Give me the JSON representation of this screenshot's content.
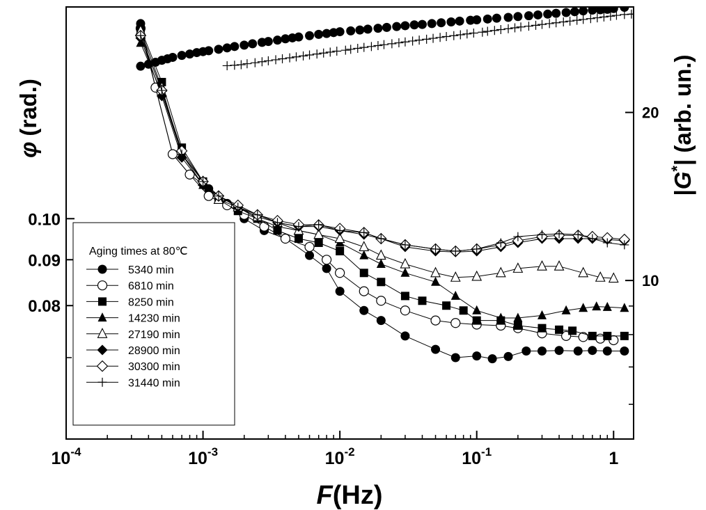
{
  "chart_data": {
    "type": "scatter",
    "x_scale": "log",
    "xlim": [
      0.0001,
      1.4
    ],
    "xlabel": {
      "italic": "F",
      "rest": "(Hz)"
    },
    "x_tick_labels": [
      {
        "value": 0.0001,
        "base": "10",
        "exp": "-4"
      },
      {
        "value": 0.001,
        "base": "10",
        "exp": "-3"
      },
      {
        "value": 0.01,
        "base": "10",
        "exp": "-2"
      },
      {
        "value": 0.1,
        "base": "10",
        "exp": "-1"
      },
      {
        "value": 1,
        "base": "1",
        "exp": ""
      }
    ],
    "ylabel_left": {
      "symbol": "φ",
      "rest": "(rad.)"
    },
    "ylim_left_log": [
      0.0568,
      0.1722
    ],
    "y_left_tick_labels": [
      {
        "value": 0.1,
        "label": "0.10"
      },
      {
        "value": 0.09,
        "label": "0.09"
      },
      {
        "value": 0.08,
        "label": "0.08"
      }
    ],
    "y_left_minor_ticks": [
      0.07
    ],
    "ylabel_right": {
      "pre": "|",
      "italic": "G",
      "sup": "*",
      "post": "|  (arb. un.)"
    },
    "ylim_right_log": [
      5.2,
      30.9
    ],
    "y_right_tick_labels": [
      {
        "value": 20,
        "label": "20"
      },
      {
        "value": 10,
        "label": "10"
      }
    ],
    "y_right_minor_ticks": [
      30,
      9,
      8,
      7,
      6
    ],
    "legend": {
      "title": "Aging times at 80℃",
      "placement": "lower-left"
    },
    "colors": {
      "axis": "#000000",
      "markers": "#000000",
      "background": "#ffffff"
    },
    "phase_series": [
      {
        "name": "5340 min",
        "marker": "circle-filled",
        "x": [
          0.00035,
          0.00045,
          0.0006,
          0.0008,
          0.0011,
          0.0015,
          0.002,
          0.0028,
          0.004,
          0.006,
          0.008,
          0.01,
          0.015,
          0.02,
          0.03,
          0.05,
          0.07,
          0.1,
          0.13,
          0.17,
          0.23,
          0.3,
          0.4,
          0.55,
          0.7,
          0.9,
          1.2
        ],
        "y": [
          0.165,
          0.14,
          0.118,
          0.112,
          0.108,
          0.104,
          0.1,
          0.097,
          0.095,
          0.091,
          0.088,
          0.083,
          0.079,
          0.077,
          0.074,
          0.0715,
          0.07,
          0.0703,
          0.0698,
          0.0702,
          0.0712,
          0.0712,
          0.0713,
          0.0712,
          0.0713,
          0.0712,
          0.0712
        ]
      },
      {
        "name": "6810 min",
        "marker": "circle-open",
        "x": [
          0.00035,
          0.00045,
          0.0006,
          0.0008,
          0.0011,
          0.0015,
          0.002,
          0.0028,
          0.004,
          0.006,
          0.008,
          0.01,
          0.015,
          0.02,
          0.03,
          0.05,
          0.07,
          0.1,
          0.15,
          0.2,
          0.3,
          0.45,
          0.6,
          0.8,
          1.0
        ],
        "y": [
          0.163,
          0.14,
          0.118,
          0.112,
          0.106,
          0.1035,
          0.101,
          0.098,
          0.095,
          0.093,
          0.09,
          0.087,
          0.083,
          0.081,
          0.079,
          0.077,
          0.0765,
          0.0762,
          0.076,
          0.0755,
          0.0745,
          0.074,
          0.0738,
          0.0735,
          0.0732
        ]
      },
      {
        "name": "8250 min",
        "marker": "square-filled",
        "x": [
          0.00035,
          0.0005,
          0.0007,
          0.001,
          0.0013,
          0.0018,
          0.0025,
          0.0035,
          0.005,
          0.007,
          0.01,
          0.015,
          0.02,
          0.03,
          0.04,
          0.06,
          0.08,
          0.1,
          0.15,
          0.2,
          0.3,
          0.4,
          0.5,
          0.7,
          0.9,
          1.2
        ],
        "y": [
          0.163,
          0.142,
          0.12,
          0.11,
          0.105,
          0.102,
          0.1,
          0.097,
          0.095,
          0.094,
          0.092,
          0.087,
          0.085,
          0.082,
          0.081,
          0.08,
          0.079,
          0.077,
          0.077,
          0.076,
          0.0755,
          0.0752,
          0.075,
          0.074,
          0.074,
          0.074
        ]
      },
      {
        "name": "14230 min",
        "marker": "triangle-filled",
        "x": [
          0.00035,
          0.0005,
          0.0007,
          0.001,
          0.0013,
          0.0018,
          0.0025,
          0.0035,
          0.005,
          0.007,
          0.01,
          0.015,
          0.02,
          0.03,
          0.05,
          0.07,
          0.1,
          0.15,
          0.2,
          0.3,
          0.45,
          0.6,
          0.75,
          0.9,
          1.2
        ],
        "y": [
          0.157,
          0.138,
          0.118,
          0.109,
          0.106,
          0.103,
          0.1,
          0.098,
          0.097,
          0.096,
          0.094,
          0.091,
          0.089,
          0.087,
          0.085,
          0.082,
          0.079,
          0.0775,
          0.0775,
          0.078,
          0.079,
          0.0795,
          0.0798,
          0.0797,
          0.0795
        ]
      },
      {
        "name": "27190 min",
        "marker": "triangle-open",
        "x": [
          0.00035,
          0.0005,
          0.0007,
          0.001,
          0.0013,
          0.0018,
          0.0025,
          0.0035,
          0.005,
          0.007,
          0.01,
          0.015,
          0.02,
          0.03,
          0.05,
          0.07,
          0.1,
          0.15,
          0.2,
          0.3,
          0.4,
          0.6,
          0.8,
          1.0
        ],
        "y": [
          0.162,
          0.14,
          0.118,
          0.11,
          0.105,
          0.103,
          0.1005,
          0.099,
          0.097,
          0.096,
          0.095,
          0.093,
          0.091,
          0.089,
          0.087,
          0.086,
          0.0862,
          0.087,
          0.088,
          0.0885,
          0.0885,
          0.087,
          0.086,
          0.0858
        ]
      },
      {
        "name": "28900 min",
        "marker": "diamond-filled",
        "x": [
          0.00035,
          0.0005,
          0.0007,
          0.001,
          0.0013,
          0.0018,
          0.0025,
          0.0035,
          0.005,
          0.007,
          0.01,
          0.015,
          0.02,
          0.03,
          0.05,
          0.07,
          0.1,
          0.15,
          0.2,
          0.3,
          0.4,
          0.55,
          0.7,
          0.9,
          1.2
        ],
        "y": [
          0.159,
          0.137,
          0.117,
          0.109,
          0.106,
          0.103,
          0.101,
          0.099,
          0.098,
          0.098,
          0.097,
          0.096,
          0.095,
          0.093,
          0.092,
          0.0918,
          0.092,
          0.093,
          0.094,
          0.095,
          0.095,
          0.095,
          0.095,
          0.0948,
          0.0945
        ]
      },
      {
        "name": "30300 min",
        "marker": "diamond-open",
        "x": [
          0.00035,
          0.0005,
          0.0007,
          0.001,
          0.0013,
          0.0018,
          0.0025,
          0.0035,
          0.005,
          0.007,
          0.01,
          0.015,
          0.02,
          0.03,
          0.05,
          0.07,
          0.1,
          0.15,
          0.2,
          0.3,
          0.4,
          0.55,
          0.7,
          0.9,
          1.2
        ],
        "y": [
          0.16,
          0.139,
          0.119,
          0.11,
          0.106,
          0.1035,
          0.101,
          0.0995,
          0.0985,
          0.0984,
          0.0975,
          0.0965,
          0.095,
          0.0935,
          0.0925,
          0.092,
          0.0925,
          0.0935,
          0.0945,
          0.0955,
          0.0958,
          0.0958,
          0.0955,
          0.0952,
          0.0948
        ]
      },
      {
        "name": "31440 min",
        "marker": "plus",
        "x": [
          0.00035,
          0.0005,
          0.0007,
          0.001,
          0.0013,
          0.0018,
          0.0025,
          0.0035,
          0.005,
          0.007,
          0.01,
          0.015,
          0.02,
          0.03,
          0.05,
          0.07,
          0.1,
          0.15,
          0.2,
          0.3,
          0.4,
          0.55,
          0.7,
          0.9,
          1.2
        ],
        "y": [
          0.16,
          0.139,
          0.118,
          0.11,
          0.106,
          0.103,
          0.101,
          0.099,
          0.098,
          0.0985,
          0.097,
          0.0965,
          0.095,
          0.0935,
          0.0925,
          0.092,
          0.0925,
          0.094,
          0.0955,
          0.096,
          0.0962,
          0.096,
          0.095,
          0.094,
          0.0935
        ]
      }
    ],
    "modulus_series": [
      {
        "marker": "circle-filled",
        "x": [
          0.00035,
          0.0004,
          0.00045,
          0.0005,
          0.00055,
          0.0006,
          0.0007,
          0.0008,
          0.0009,
          0.001,
          0.0011,
          0.0013,
          0.0015,
          0.0017,
          0.002,
          0.0023,
          0.0027,
          0.003,
          0.0035,
          0.004,
          0.0045,
          0.005,
          0.006,
          0.007,
          0.008,
          0.009,
          0.01,
          0.012,
          0.014,
          0.016,
          0.019,
          0.022,
          0.026,
          0.03,
          0.035,
          0.04,
          0.047,
          0.055,
          0.065,
          0.075,
          0.09,
          0.1,
          0.12,
          0.14,
          0.17,
          0.2,
          0.24,
          0.28,
          0.33,
          0.38,
          0.45,
          0.52,
          0.6,
          0.7,
          0.8,
          0.9,
          1.0,
          1.2
        ],
        "y": [
          24.2,
          24.4,
          24.6,
          24.8,
          24.95,
          25.1,
          25.3,
          25.45,
          25.6,
          25.7,
          25.8,
          25.95,
          26.1,
          26.25,
          26.4,
          26.55,
          26.7,
          26.8,
          26.95,
          27.1,
          27.2,
          27.3,
          27.45,
          27.6,
          27.7,
          27.8,
          27.9,
          28.0,
          28.1,
          28.2,
          28.3,
          28.4,
          28.5,
          28.6,
          28.7,
          28.75,
          28.85,
          28.95,
          29.05,
          29.15,
          29.25,
          29.3,
          29.4,
          29.5,
          29.6,
          29.7,
          29.8,
          29.9,
          30.0,
          30.1,
          30.2,
          30.3,
          30.4,
          30.5,
          30.55,
          30.6,
          30.7,
          30.85
        ]
      },
      {
        "marker": "plus",
        "x": [
          0.0015,
          0.0017,
          0.0019,
          0.0021,
          0.0024,
          0.0027,
          0.003,
          0.0034,
          0.0038,
          0.0043,
          0.0048,
          0.0054,
          0.006,
          0.0068,
          0.0076,
          0.0085,
          0.0095,
          0.011,
          0.012,
          0.0135,
          0.015,
          0.017,
          0.019,
          0.021,
          0.024,
          0.027,
          0.03,
          0.034,
          0.038,
          0.043,
          0.048,
          0.054,
          0.06,
          0.068,
          0.076,
          0.085,
          0.095,
          0.11,
          0.12,
          0.135,
          0.15,
          0.17,
          0.19,
          0.21,
          0.24,
          0.27,
          0.3,
          0.34,
          0.38,
          0.43,
          0.48,
          0.54,
          0.6,
          0.68,
          0.76,
          0.85,
          0.95,
          1.05,
          1.2,
          1.35
        ],
        "y": [
          24.25,
          24.3,
          24.35,
          24.45,
          24.55,
          24.65,
          24.75,
          24.85,
          24.95,
          25.05,
          25.15,
          25.25,
          25.35,
          25.45,
          25.55,
          25.65,
          25.75,
          25.85,
          25.95,
          26.05,
          26.15,
          26.25,
          26.35,
          26.45,
          26.55,
          26.65,
          26.75,
          26.85,
          26.95,
          27.05,
          27.15,
          27.25,
          27.35,
          27.45,
          27.55,
          27.65,
          27.75,
          27.85,
          27.95,
          28.05,
          28.15,
          28.25,
          28.35,
          28.45,
          28.55,
          28.65,
          28.75,
          28.85,
          28.95,
          29.05,
          29.15,
          29.25,
          29.35,
          29.45,
          29.55,
          29.65,
          29.75,
          29.85,
          29.95,
          30.0
        ]
      }
    ]
  }
}
